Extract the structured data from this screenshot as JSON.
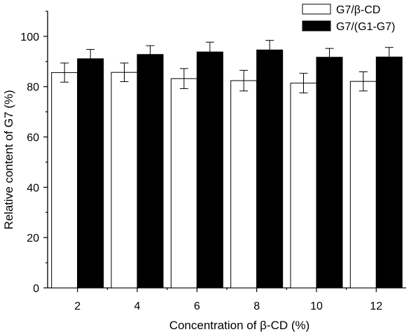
{
  "chart_data": {
    "type": "bar",
    "categories": [
      "2",
      "4",
      "6",
      "8",
      "10",
      "12"
    ],
    "series": [
      {
        "name": "G7/β-CD",
        "values": [
          85.6,
          85.7,
          83.2,
          82.4,
          81.4,
          82.1
        ],
        "errors": [
          3.8,
          3.7,
          4.0,
          4.1,
          3.9,
          3.8
        ],
        "fill": "#ffffff",
        "stroke": "#000000"
      },
      {
        "name": "G7/(G1-G7)",
        "values": [
          91.1,
          92.8,
          93.8,
          94.6,
          91.7,
          91.8
        ],
        "errors": [
          3.7,
          3.5,
          3.9,
          3.8,
          3.5,
          3.8
        ],
        "fill": "#000000",
        "stroke": "#000000"
      }
    ],
    "xlabel": "Concentration of β-CD (%)",
    "ylabel": "Relative content of G7 (%)",
    "ylim": [
      0,
      110
    ],
    "yticks": [
      0,
      20,
      40,
      60,
      80,
      100
    ],
    "grid": false,
    "legend_position": "top-right"
  }
}
